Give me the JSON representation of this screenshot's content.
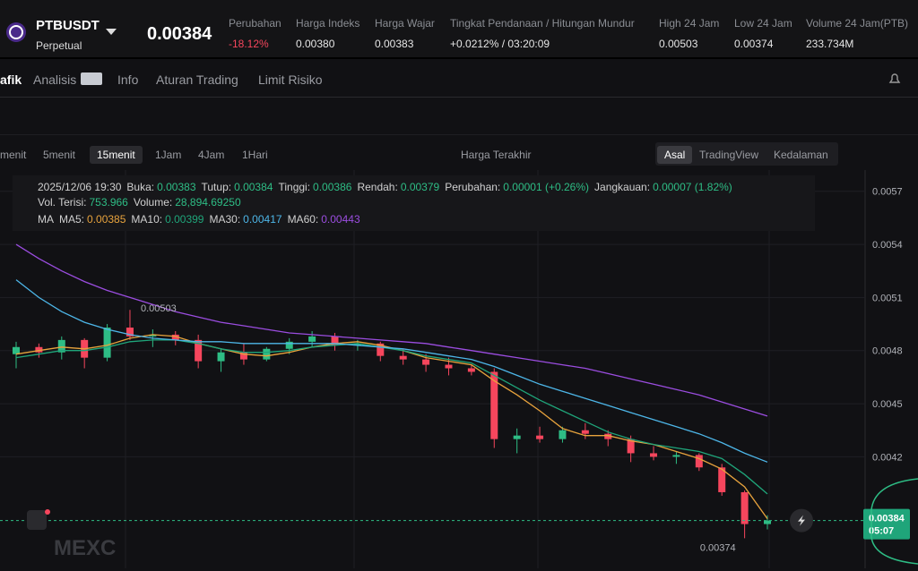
{
  "header": {
    "symbol": "PTBUSDT",
    "subtitle": "Perpetual",
    "price": "0.00384",
    "stats": [
      {
        "label": "Perubahan",
        "value": "-18.12%"
      },
      {
        "label": "Harga Indeks",
        "value": "0.00380"
      },
      {
        "label": "Harga Wajar",
        "value": "0.00383"
      },
      {
        "label": "Tingkat Pendanaan / Hitungan Mundur",
        "value": "+0.0212% / 03:20:09"
      },
      {
        "label": "High 24 Jam",
        "value": "0.00503"
      },
      {
        "label": "Low 24 Jam",
        "value": "0.00374"
      },
      {
        "label": "Volume 24 Jam(PTB)",
        "value": "233.734M"
      }
    ]
  },
  "tabs": [
    "afik",
    "Analisis",
    "Info",
    "Aturan Trading",
    "Limit Risiko"
  ],
  "toolbar": {
    "intervals": [
      "menit",
      "5menit",
      "15menit",
      "1Jam",
      "4Jam",
      "1Hari"
    ],
    "price_type": "Harga Terakhir",
    "views": [
      "Asal",
      "TradingView",
      "Kedalaman"
    ]
  },
  "info": {
    "date": "2025/12/06 19:30",
    "ohlc": [
      {
        "label": "Buka:",
        "value": "0.00383"
      },
      {
        "label": "Tutup:",
        "value": "0.00384"
      },
      {
        "label": "Tinggi:",
        "value": "0.00386"
      },
      {
        "label": "Rendah:",
        "value": "0.00379"
      },
      {
        "label": "Perubahan:",
        "value": "0.00001 (+0.26%)"
      },
      {
        "label": "Jangkauan:",
        "value": "0.00007 (1.82%)"
      }
    ],
    "volume": [
      {
        "label": "Vol. Terisi:",
        "value": "753.966"
      },
      {
        "label": "Volume:",
        "value": "28,894.69250"
      }
    ],
    "ma_title": "MA"
  },
  "chart": {
    "type": "candlestick",
    "ylim": [
      0.00357,
      0.00582
    ],
    "yticks": [
      0.0057,
      0.0054,
      0.0051,
      0.0048,
      0.0045,
      0.0042
    ],
    "up_color": "#2ebd85",
    "down_color": "#f6465d",
    "open": [
      0.00478,
      0.00482,
      0.00479,
      0.00486,
      0.00476,
      0.00493,
      0.00488,
      0.00489,
      0.00486,
      0.00474,
      0.00479,
      0.00475,
      0.00481,
      0.00485,
      0.00488,
      0.00483,
      0.00484,
      0.00477,
      0.00475,
      0.00472,
      0.0047,
      0.00468,
      0.0043,
      0.00432,
      0.0043,
      0.00435,
      0.00433,
      0.0043,
      0.00422,
      0.0042,
      0.00421,
      0.00414,
      0.004,
      0.00382
    ],
    "high": [
      0.00485,
      0.00484,
      0.00488,
      0.00487,
      0.00495,
      0.00503,
      0.00492,
      0.00491,
      0.00489,
      0.00481,
      0.00484,
      0.00482,
      0.00487,
      0.00491,
      0.0049,
      0.00486,
      0.00485,
      0.00481,
      0.00478,
      0.00476,
      0.00472,
      0.0047,
      0.00436,
      0.00437,
      0.00437,
      0.00439,
      0.00435,
      0.00432,
      0.00426,
      0.00423,
      0.00422,
      0.00416,
      0.00401,
      0.00387
    ],
    "low": [
      0.0047,
      0.00476,
      0.00475,
      0.0047,
      0.00474,
      0.00486,
      0.00482,
      0.00483,
      0.0047,
      0.00468,
      0.00472,
      0.00474,
      0.00478,
      0.00482,
      0.0048,
      0.0048,
      0.00474,
      0.00472,
      0.00468,
      0.00466,
      0.00466,
      0.00425,
      0.00422,
      0.00428,
      0.00428,
      0.0043,
      0.00426,
      0.00417,
      0.00418,
      0.00416,
      0.00412,
      0.00398,
      0.00374,
      0.00379
    ],
    "close": [
      0.00482,
      0.00479,
      0.00486,
      0.00476,
      0.00493,
      0.00488,
      0.00489,
      0.00486,
      0.00474,
      0.00479,
      0.00475,
      0.00481,
      0.00485,
      0.00488,
      0.00483,
      0.00484,
      0.00477,
      0.00475,
      0.00472,
      0.0047,
      0.00468,
      0.0043,
      0.00432,
      0.0043,
      0.00435,
      0.00433,
      0.0043,
      0.00422,
      0.0042,
      0.00421,
      0.00414,
      0.004,
      0.00382,
      0.00384
    ],
    "ma": [
      {
        "name": "MA5:",
        "value": "0.00385",
        "color": "#e8a33d",
        "values": [
          0.00478,
          0.0048,
          0.00482,
          0.00481,
          0.00483,
          0.00487,
          0.00489,
          0.00488,
          0.00484,
          0.00481,
          0.00478,
          0.00477,
          0.00479,
          0.00482,
          0.00484,
          0.00485,
          0.00483,
          0.0048,
          0.00476,
          0.00474,
          0.00472,
          0.00463,
          0.00455,
          0.00446,
          0.00436,
          0.00432,
          0.00432,
          0.00429,
          0.00427,
          0.00423,
          0.00419,
          0.00413,
          0.00403,
          0.00385
        ]
      },
      {
        "name": "MA10:",
        "value": "0.00399",
        "color": "#1fa57a",
        "values": [
          0.00476,
          0.00478,
          0.0048,
          0.0048,
          0.00482,
          0.00485,
          0.00486,
          0.00486,
          0.00484,
          0.00481,
          0.00479,
          0.00479,
          0.0048,
          0.00482,
          0.00483,
          0.00484,
          0.00482,
          0.0048,
          0.00477,
          0.00475,
          0.00473,
          0.00466,
          0.00459,
          0.00452,
          0.00446,
          0.0044,
          0.00434,
          0.0043,
          0.00427,
          0.00425,
          0.00423,
          0.00419,
          0.0041,
          0.00399
        ]
      },
      {
        "name": "MA30:",
        "value": "0.00417",
        "color": "#4db6e8",
        "values": [
          0.0052,
          0.0051,
          0.00502,
          0.00496,
          0.00492,
          0.00489,
          0.00487,
          0.00486,
          0.00485,
          0.00485,
          0.00484,
          0.00484,
          0.00484,
          0.00484,
          0.00484,
          0.00483,
          0.00482,
          0.00481,
          0.00479,
          0.00477,
          0.00475,
          0.00471,
          0.00466,
          0.00461,
          0.00457,
          0.00453,
          0.00449,
          0.00445,
          0.00441,
          0.00437,
          0.00433,
          0.00428,
          0.00422,
          0.00417
        ]
      },
      {
        "name": "MA60:",
        "value": "0.00443",
        "color": "#9b4de0",
        "values": [
          0.0054,
          0.00532,
          0.00525,
          0.00519,
          0.00514,
          0.0051,
          0.00506,
          0.00502,
          0.00499,
          0.00496,
          0.00494,
          0.00492,
          0.0049,
          0.00489,
          0.00488,
          0.00487,
          0.00486,
          0.00485,
          0.00484,
          0.00482,
          0.0048,
          0.00478,
          0.00476,
          0.00474,
          0.00472,
          0.0047,
          0.00467,
          0.00464,
          0.00461,
          0.00458,
          0.00455,
          0.00451,
          0.00447,
          0.00443
        ]
      }
    ],
    "high_label": "0.00503",
    "low_label": "0.00374",
    "last_label": "0.00384",
    "countdown": "05:07",
    "watermark": "MEXC"
  }
}
